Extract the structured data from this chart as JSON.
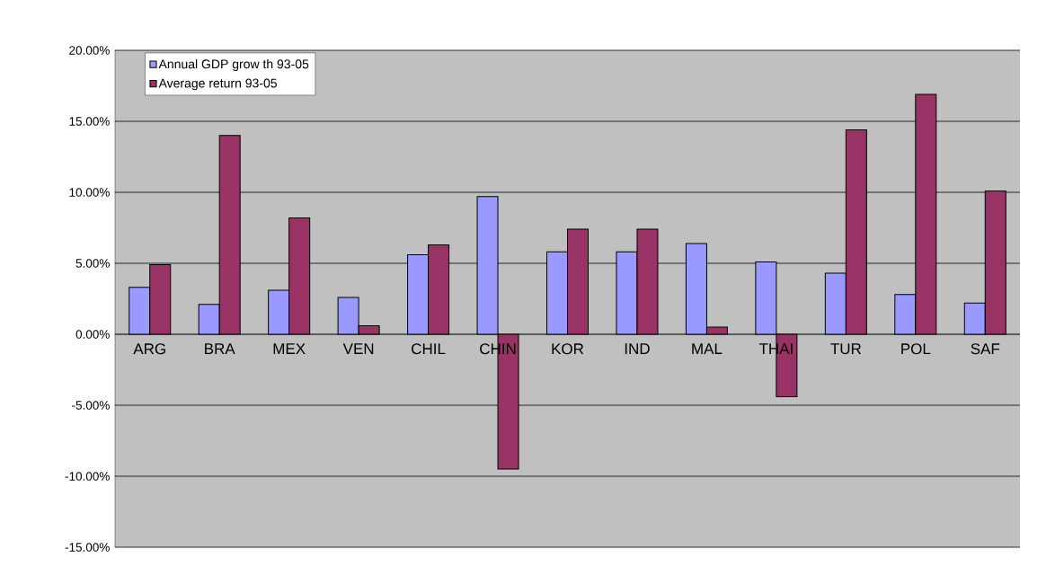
{
  "chart_data": {
    "type": "bar",
    "categories": [
      "ARG",
      "BRA",
      "MEX",
      "VEN",
      "CHIL",
      "CHIN",
      "KOR",
      "IND",
      "MAL",
      "THAI",
      "TUR",
      "POL",
      "SAF"
    ],
    "series": [
      {
        "name": "Annual GDP grow th 93-05",
        "color": "#9999ff",
        "values": [
          3.3,
          2.1,
          3.1,
          2.6,
          5.6,
          9.7,
          5.8,
          5.8,
          6.4,
          5.1,
          4.3,
          2.8,
          2.2
        ]
      },
      {
        "name": "Average return 93-05",
        "color": "#993366",
        "values": [
          4.9,
          14.0,
          8.2,
          0.6,
          6.3,
          -9.5,
          7.4,
          7.4,
          0.5,
          -4.4,
          14.4,
          16.9,
          10.1
        ]
      }
    ],
    "ylim": [
      -15,
      20
    ],
    "yticks": [
      {
        "value": -15,
        "label": "-15.00%"
      },
      {
        "value": -10,
        "label": "-10.00%"
      },
      {
        "value": -5,
        "label": "-5.00%"
      },
      {
        "value": 0,
        "label": "0.00%"
      },
      {
        "value": 5,
        "label": "5.00%"
      },
      {
        "value": 10,
        "label": "10.00%"
      },
      {
        "value": 15,
        "label": "15.00%"
      },
      {
        "value": 20,
        "label": "20.00%"
      }
    ],
    "grid": "y",
    "legend": "top left"
  }
}
